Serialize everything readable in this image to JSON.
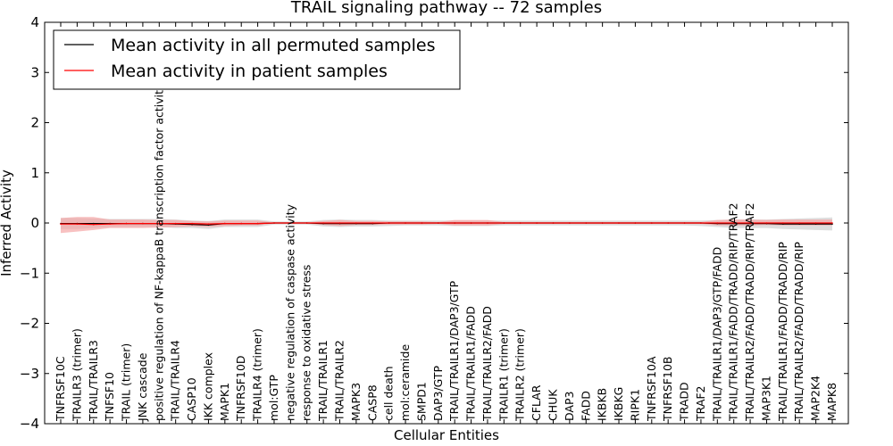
{
  "chart_data": {
    "type": "line",
    "title": "TRAIL signaling pathway -- 72 samples",
    "xlabel": "Cellular Entities",
    "ylabel": "Inferred Activity",
    "ylim": [
      -4,
      4
    ],
    "yticks": [
      -4,
      -3,
      -2,
      -1,
      0,
      1,
      2,
      3,
      4
    ],
    "ytick_labels": [
      "−4",
      "−3",
      "−2",
      "−1",
      "0",
      "1",
      "2",
      "3",
      "4"
    ],
    "legend_placement": "top-left",
    "categories": [
      "TNFRSF10C",
      "TRAILR3 (trimer)",
      "TRAIL/TRAILR3",
      "TNFSF10",
      "TRAIL (trimer)",
      "JNK cascade",
      "positive regulation of NF-kappaB transcription factor activity",
      "TRAIL/TRAILR4",
      "CASP10",
      "IKK complex",
      "MAPK1",
      "TNFRSF10D",
      "TRAILR4 (trimer)",
      "mol:GTP",
      "negative regulation of caspase activity",
      "response to oxidative stress",
      "TRAIL/TRAILR1",
      "TRAIL/TRAILR2",
      "MAPK3",
      "CASP8",
      "cell death",
      "mol:ceramide",
      "SMPD1",
      "DAP3/GTP",
      "TRAIL/TRAILR1/DAP3/GTP",
      "TRAIL/TRAILR1/FADD",
      "TRAIL/TRAILR2/FADD",
      "TRAILR1 (trimer)",
      "TRAILR2 (trimer)",
      "CFLAR",
      "CHUK",
      "DAP3",
      "FADD",
      "IKBKB",
      "IKBKG",
      "RIPK1",
      "TNFRSF10A",
      "TNFRSF10B",
      "TRADD",
      "TRAF2",
      "TRAIL/TRAILR1/DAP3/GTP/FADD",
      "TRAIL/TRAILR1/FADD/TRADD/RIP/TRAF2",
      "TRAIL/TRAILR2/FADD/TRADD/RIP/TRAF2",
      "MAP3K1",
      "TRAIL/TRAILR1/FADD/TRADD/RIP",
      "TRAIL/TRAILR2/FADD/TRADD/RIP",
      "MAP2K4",
      "MAPK8"
    ],
    "series": [
      {
        "name": "Mean activity in all permuted samples",
        "color": "#000000",
        "band_color": "#c8c8c8",
        "values": [
          -0.01,
          -0.01,
          -0.01,
          -0.01,
          -0.01,
          -0.01,
          -0.01,
          -0.02,
          -0.03,
          -0.04,
          -0.01,
          -0.01,
          -0.01,
          0.0,
          0.0,
          0.0,
          -0.01,
          -0.01,
          -0.01,
          -0.01,
          0.0,
          0.0,
          0.0,
          0.0,
          0.0,
          0.0,
          0.0,
          0.0,
          0.0,
          0.0,
          0.0,
          0.0,
          0.0,
          0.0,
          0.0,
          0.0,
          0.0,
          0.0,
          0.0,
          0.0,
          -0.01,
          -0.01,
          -0.01,
          -0.01,
          -0.02,
          -0.02,
          -0.02,
          -0.02
        ],
        "band_low": [
          -0.12,
          -0.12,
          -0.1,
          -0.08,
          -0.08,
          -0.08,
          -0.08,
          -0.1,
          -0.1,
          -0.12,
          -0.08,
          -0.08,
          -0.08,
          -0.03,
          -0.03,
          -0.03,
          -0.07,
          -0.08,
          -0.07,
          -0.07,
          -0.06,
          -0.05,
          -0.05,
          -0.05,
          -0.06,
          -0.06,
          -0.06,
          -0.05,
          -0.05,
          -0.05,
          -0.05,
          -0.05,
          -0.05,
          -0.05,
          -0.05,
          -0.05,
          -0.05,
          -0.05,
          -0.05,
          -0.06,
          -0.08,
          -0.1,
          -0.1,
          -0.1,
          -0.12,
          -0.13,
          -0.14,
          -0.15
        ],
        "band_high": [
          0.1,
          0.1,
          0.09,
          0.08,
          0.08,
          0.08,
          0.08,
          0.07,
          0.05,
          0.04,
          0.07,
          0.07,
          0.07,
          0.03,
          0.03,
          0.03,
          0.06,
          0.07,
          0.06,
          0.06,
          0.05,
          0.05,
          0.05,
          0.05,
          0.05,
          0.05,
          0.05,
          0.05,
          0.05,
          0.05,
          0.05,
          0.05,
          0.05,
          0.05,
          0.05,
          0.05,
          0.05,
          0.05,
          0.05,
          0.05,
          0.06,
          0.07,
          0.07,
          0.07,
          0.08,
          0.09,
          0.1,
          0.11
        ]
      },
      {
        "name": "Mean activity in patient samples",
        "color": "#ff0000",
        "band_color": "#f4a0a0",
        "values": [
          -0.02,
          -0.02,
          -0.03,
          -0.02,
          -0.01,
          -0.01,
          -0.01,
          -0.01,
          -0.01,
          -0.02,
          -0.01,
          -0.01,
          -0.01,
          0.0,
          0.0,
          0.0,
          0.0,
          0.0,
          0.0,
          0.0,
          0.0,
          0.0,
          0.0,
          0.0,
          0.0,
          0.0,
          0.0,
          0.0,
          0.0,
          0.0,
          0.0,
          0.0,
          0.0,
          0.0,
          0.0,
          0.0,
          0.0,
          0.0,
          0.0,
          0.0,
          0.0,
          0.0,
          0.0,
          0.0,
          0.0,
          0.0,
          0.0,
          0.0
        ],
        "band_low": [
          -0.2,
          -0.17,
          -0.14,
          -0.1,
          -0.1,
          -0.1,
          -0.09,
          -0.08,
          -0.07,
          -0.08,
          -0.06,
          -0.05,
          -0.05,
          -0.01,
          -0.01,
          -0.01,
          -0.04,
          -0.06,
          -0.04,
          -0.04,
          -0.03,
          -0.03,
          -0.03,
          -0.02,
          -0.05,
          -0.05,
          -0.05,
          -0.02,
          -0.02,
          -0.02,
          -0.02,
          -0.02,
          -0.02,
          -0.02,
          -0.02,
          -0.02,
          -0.02,
          -0.02,
          -0.02,
          -0.02,
          -0.05,
          -0.05,
          -0.05,
          -0.04,
          -0.05,
          -0.05,
          -0.05,
          -0.05
        ],
        "band_high": [
          0.1,
          0.12,
          0.12,
          0.07,
          0.07,
          0.07,
          0.06,
          0.06,
          0.04,
          0.03,
          0.05,
          0.05,
          0.05,
          0.01,
          0.01,
          0.01,
          0.04,
          0.06,
          0.04,
          0.04,
          0.03,
          0.03,
          0.03,
          0.02,
          0.06,
          0.06,
          0.06,
          0.02,
          0.02,
          0.02,
          0.02,
          0.02,
          0.02,
          0.02,
          0.02,
          0.02,
          0.02,
          0.02,
          0.02,
          0.02,
          0.06,
          0.07,
          0.07,
          0.06,
          0.07,
          0.07,
          0.07,
          0.07
        ]
      }
    ]
  }
}
